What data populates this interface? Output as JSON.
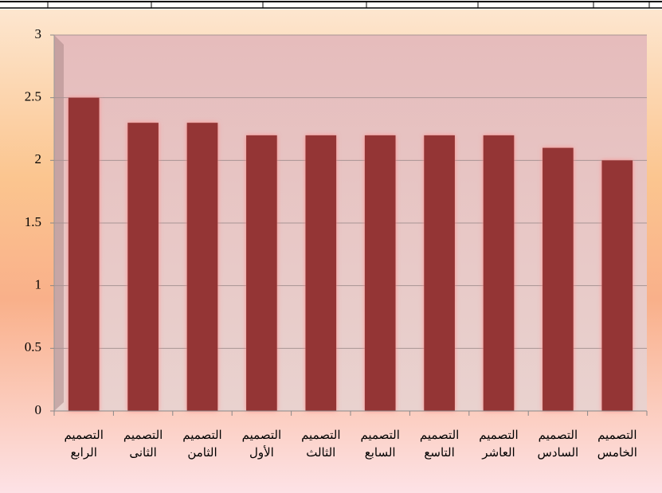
{
  "chart_data": {
    "type": "bar",
    "categories": [
      "التصميم الرابع",
      "التصميم الثانى",
      "التصميم الثامن",
      "التصميم الأول",
      "التصميم الثالث",
      "التصميم السابع",
      "التصميم التاسع",
      "التصميم العاشر",
      "التصميم السادس",
      "التصميم الخامس"
    ],
    "values": [
      2.5,
      2.3,
      2.3,
      2.2,
      2.2,
      2.2,
      2.2,
      2.2,
      2.1,
      2.0
    ],
    "color": "#943634",
    "ylim": [
      0,
      3
    ],
    "yticks": [
      0,
      0.5,
      1,
      1.5,
      2,
      2.5,
      3
    ],
    "grid": true
  }
}
